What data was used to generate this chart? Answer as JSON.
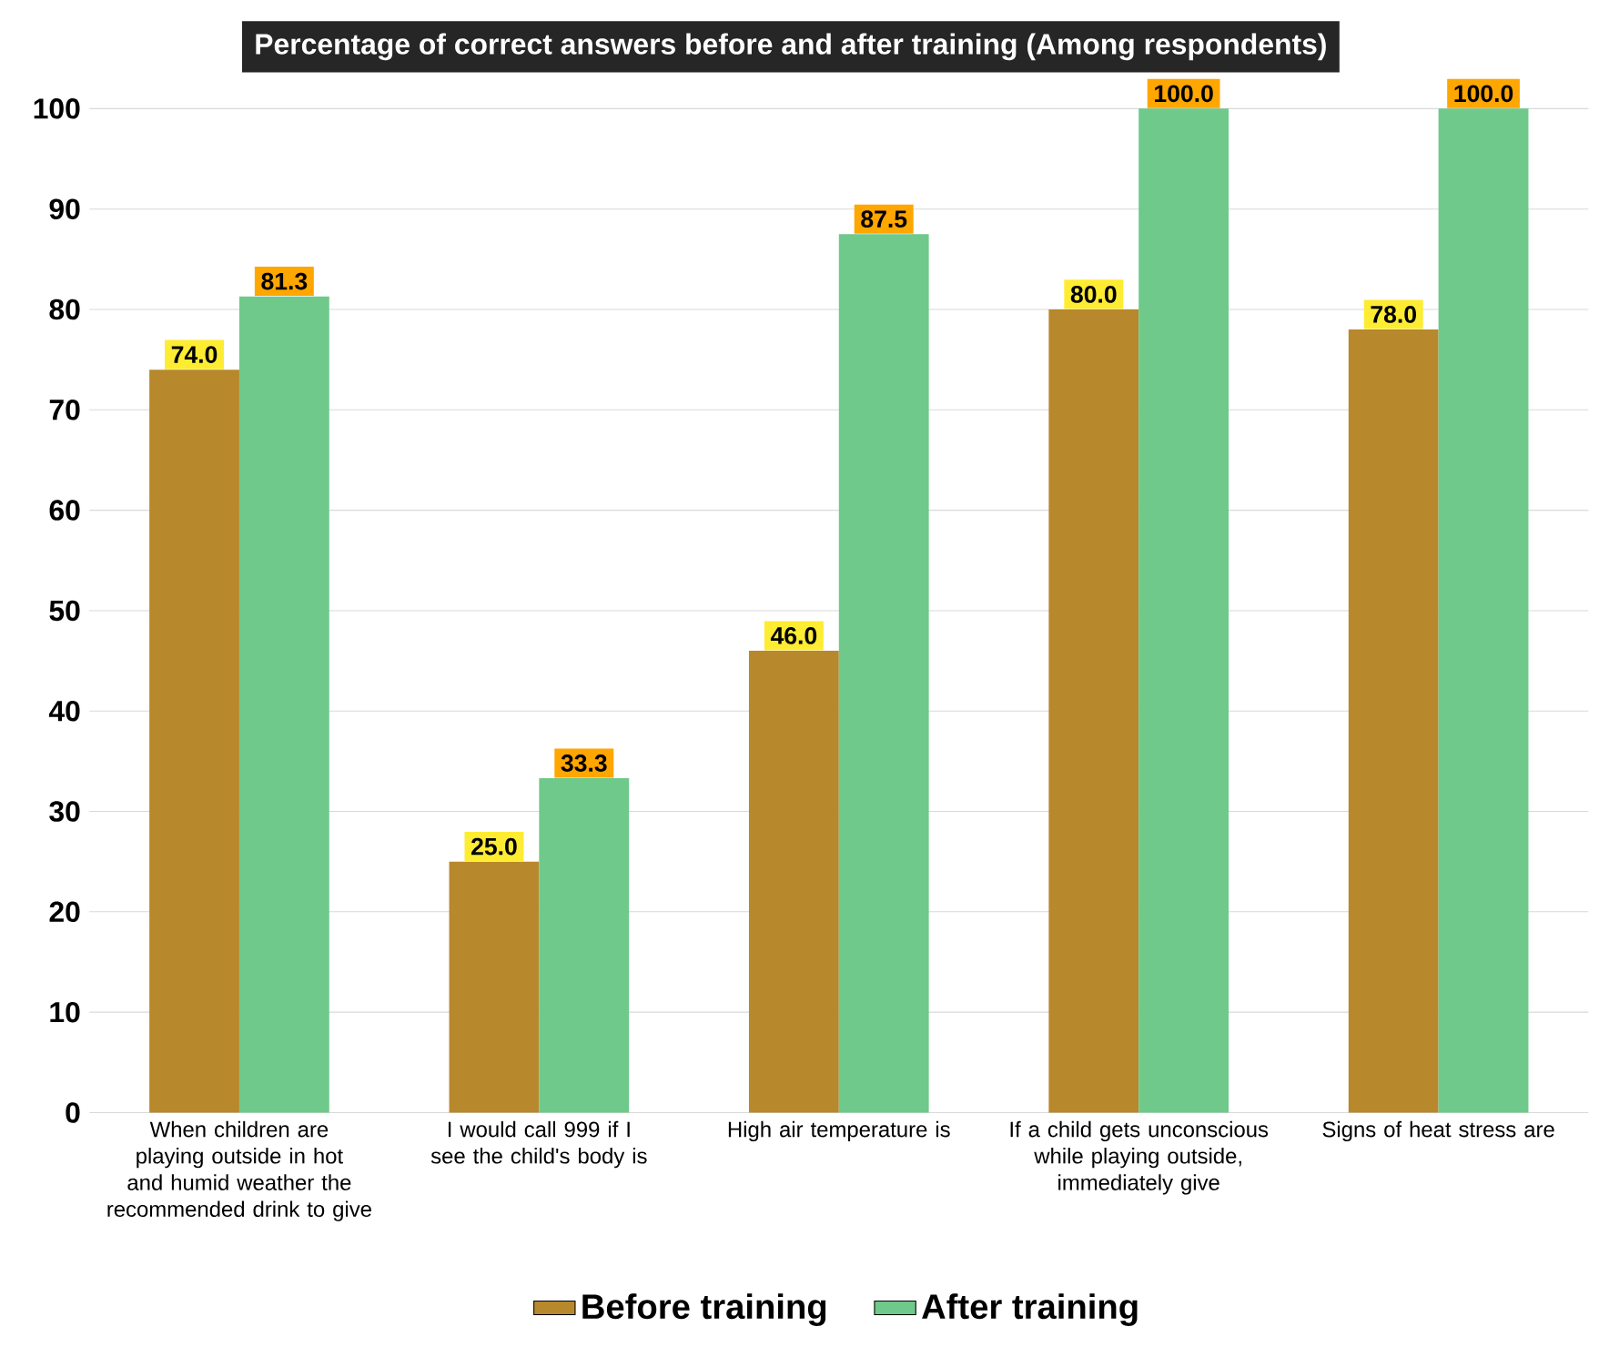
{
  "chart_data": {
    "type": "bar",
    "title": "Percentage of correct answers before and after training  (Among respondents)",
    "categories": [
      "When children are playing outside in hot and humid weather the recommended drink to give",
      "I would call 999 if I see the child's body is",
      "High air temperature is",
      "If a child gets unconscious while playing outside, immediately give",
      "Signs of heat stress are"
    ],
    "series": [
      {
        "name": "Before training",
        "color": "#b8882c",
        "values": [
          74.0,
          25.0,
          46.0,
          80.0,
          78.0
        ],
        "value_labels": [
          "74.0",
          "25.0",
          "46.0",
          "80.0",
          "78.0"
        ]
      },
      {
        "name": "After training",
        "color": "#6fc98a",
        "values": [
          81.3,
          33.3,
          87.5,
          100.0,
          100.0
        ],
        "value_labels": [
          "81.3",
          "33.3",
          "87.5",
          "100.0",
          "100.0"
        ]
      }
    ],
    "ylim": [
      0,
      100
    ],
    "yticks": [
      0,
      10,
      20,
      30,
      40,
      50,
      60,
      70,
      80,
      90,
      100
    ],
    "grid": "y",
    "legend": "bottom"
  }
}
